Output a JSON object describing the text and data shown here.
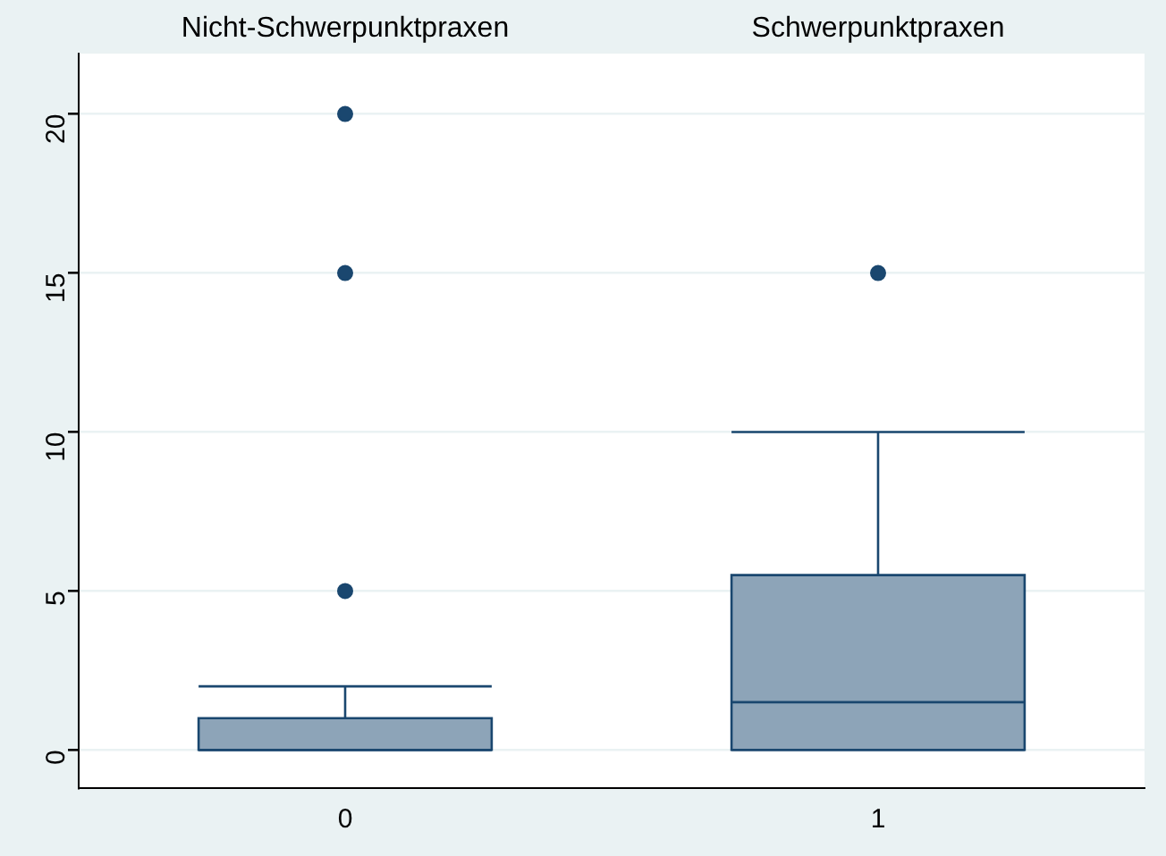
{
  "chart_data": {
    "type": "box",
    "categories": [
      "0",
      "1"
    ],
    "boxes": [
      {
        "low": 0,
        "q1": 0,
        "median": 0,
        "q3": 1,
        "high": 2,
        "outliers": [
          5,
          15,
          20
        ]
      },
      {
        "low": 0,
        "q1": 0,
        "median": 1.5,
        "q3": 5.5,
        "high": 10,
        "outliers": [
          15
        ]
      }
    ],
    "color": "#8da4b8",
    "ylim": [
      -1.2,
      21.9
    ],
    "yticks": [
      0,
      5,
      10,
      15,
      20
    ],
    "grid": "y",
    "legend": false,
    "marker": "circle",
    "annotations": [
      "Nicht-Schwerpunktpraxen",
      "Schwerpunktpraxen"
    ]
  }
}
